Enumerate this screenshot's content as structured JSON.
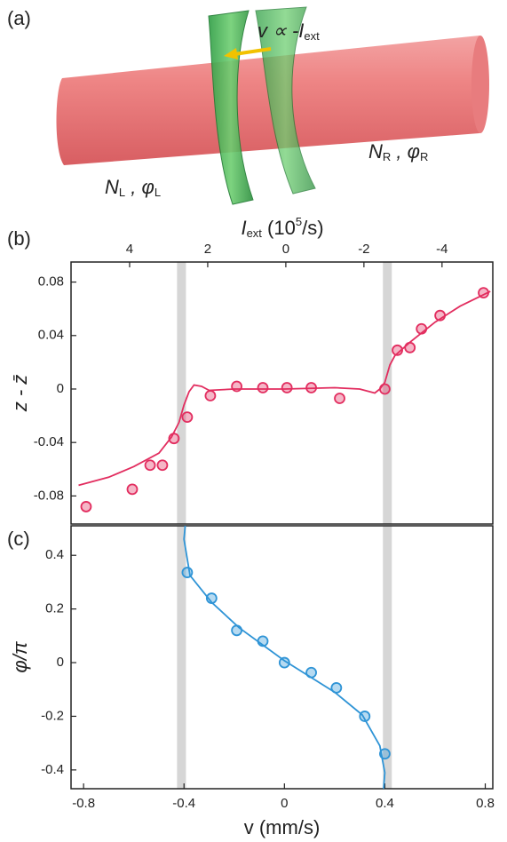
{
  "illustration": {
    "panel_label": "(a)",
    "velocity_label": {
      "text": "v ∝ -I",
      "sub": "ext"
    },
    "left_label": {
      "text": "N",
      "sub": "L",
      "after": " , φ",
      "sub2": "L"
    },
    "right_label": {
      "text": "N",
      "sub": "R",
      "after": " , φ",
      "sub2": "R"
    }
  },
  "chart_data": [
    {
      "type": "scatter",
      "panel_label": "(b)",
      "y_label": "z - z̄",
      "x2_label": {
        "text": "I",
        "sub": "ext",
        "after": " (10",
        "sup": "5",
        "end": "/s)"
      },
      "xlim": [
        -0.85,
        0.83
      ],
      "x2lim": [
        5.5,
        -5.3
      ],
      "x2ticks": [
        4,
        2,
        0,
        -2,
        -4
      ],
      "ylim": [
        -0.101,
        0.095
      ],
      "yticks": [
        0.08,
        0.04,
        0,
        -0.04,
        -0.08
      ],
      "bands": [
        -0.41,
        0.41
      ],
      "series": [
        {
          "type": "line",
          "color": "#e22d5f",
          "x": [
            -0.82,
            -0.7,
            -0.6,
            -0.5,
            -0.45,
            -0.42,
            -0.4,
            -0.38,
            -0.36,
            -0.33,
            -0.3,
            -0.2,
            0,
            0.2,
            0.3,
            0.36,
            0.38,
            0.4,
            0.42,
            0.44,
            0.5,
            0.6,
            0.7,
            0.82
          ],
          "values": [
            -0.072,
            -0.066,
            -0.058,
            -0.048,
            -0.036,
            -0.025,
            -0.012,
            -0.002,
            0.003,
            0.002,
            -0.001,
            0,
            0,
            0.001,
            0,
            -0.003,
            0,
            0.005,
            0.018,
            0.025,
            0.035,
            0.05,
            0.062,
            0.073
          ]
        },
        {
          "type": "scatter",
          "color": "#e22d5f",
          "x": [
            -0.79,
            -0.606,
            -0.535,
            -0.486,
            -0.44,
            -0.387,
            -0.295,
            -0.19,
            -0.086,
            0.01,
            0.107,
            0.22,
            0.4,
            0.45,
            0.5,
            0.546,
            0.62,
            0.793
          ],
          "values": [
            -0.088,
            -0.075,
            -0.057,
            -0.057,
            -0.037,
            -0.021,
            -0.005,
            0.002,
            0.001,
            0.001,
            0.001,
            -0.007,
            0,
            0.029,
            0.031,
            0.045,
            0.055,
            0.072
          ]
        }
      ]
    },
    {
      "type": "scatter",
      "panel_label": "(c)",
      "y_label": "φ/π",
      "x_label": "v (mm/s)",
      "xlim": [
        -0.85,
        0.83
      ],
      "xticks": [
        -0.8,
        -0.4,
        0,
        0.4,
        0.8
      ],
      "ylim": [
        -0.47,
        0.51
      ],
      "yticks": [
        0.4,
        0.2,
        0,
        -0.2,
        -0.4
      ],
      "bands": [
        -0.41,
        0.41
      ],
      "series": [
        {
          "type": "line",
          "color": "#2f94d6",
          "x": [
            -0.395,
            -0.4,
            -0.376,
            -0.29,
            -0.18,
            0,
            0.2,
            0.31,
            0.38,
            0.4,
            0.395
          ],
          "values": [
            0.51,
            0.46,
            0.325,
            0.225,
            0.13,
            0.007,
            -0.11,
            -0.195,
            -0.31,
            -0.41,
            -0.47
          ]
        },
        {
          "type": "scatter",
          "color": "#2f94d6",
          "x": [
            -0.387,
            -0.29,
            -0.19,
            -0.086,
            0,
            0.107,
            0.207,
            0.32,
            0.4
          ],
          "values": [
            0.336,
            0.24,
            0.12,
            0.08,
            0.0,
            -0.037,
            -0.094,
            -0.2,
            -0.34
          ]
        }
      ]
    }
  ]
}
